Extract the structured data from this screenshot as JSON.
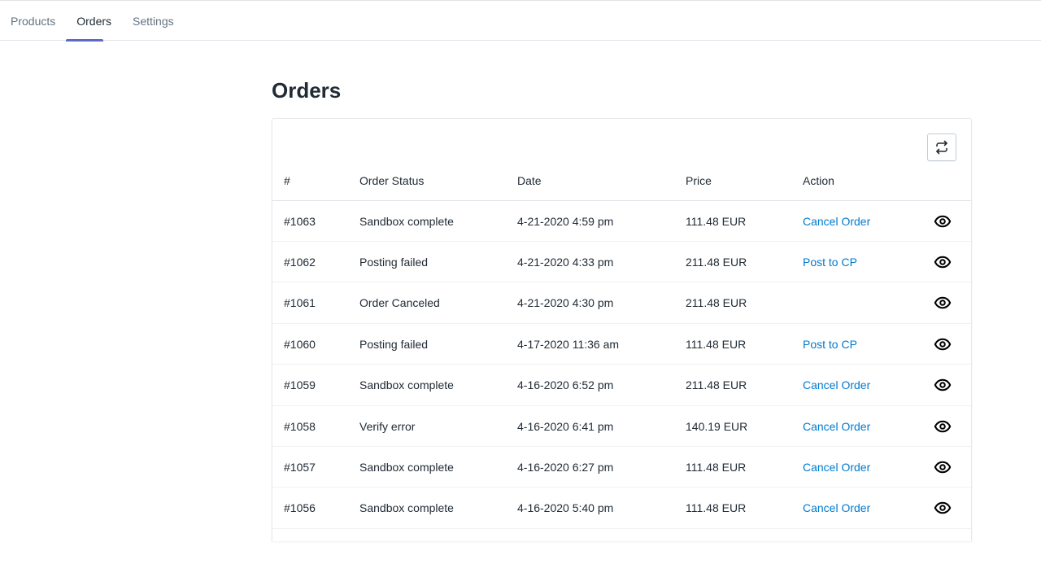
{
  "nav": {
    "tabs": [
      {
        "label": "Products",
        "active": false
      },
      {
        "label": "Orders",
        "active": true
      },
      {
        "label": "Settings",
        "active": false
      }
    ]
  },
  "page": {
    "title": "Orders"
  },
  "table": {
    "refresh_icon": "refresh-arrows-icon",
    "headers": [
      "#",
      "Order Status",
      "Date",
      "Price",
      "Action"
    ],
    "rows": [
      {
        "id": "#1063",
        "status": "Sandbox complete",
        "date": "4-21-2020 4:59 pm",
        "price": "111.48 EUR",
        "action": "Cancel Order"
      },
      {
        "id": "#1062",
        "status": "Posting failed",
        "date": "4-21-2020 4:33 pm",
        "price": "211.48 EUR",
        "action": "Post to CP"
      },
      {
        "id": "#1061",
        "status": "Order Canceled",
        "date": "4-21-2020 4:30 pm",
        "price": "211.48 EUR",
        "action": ""
      },
      {
        "id": "#1060",
        "status": "Posting failed",
        "date": "4-17-2020 11:36 am",
        "price": "111.48 EUR",
        "action": "Post to CP"
      },
      {
        "id": "#1059",
        "status": "Sandbox complete",
        "date": "4-16-2020 6:52 pm",
        "price": "211.48 EUR",
        "action": "Cancel Order"
      },
      {
        "id": "#1058",
        "status": "Verify error",
        "date": "4-16-2020 6:41 pm",
        "price": "140.19 EUR",
        "action": "Cancel Order"
      },
      {
        "id": "#1057",
        "status": "Sandbox complete",
        "date": "4-16-2020 6:27 pm",
        "price": "111.48 EUR",
        "action": "Cancel Order"
      },
      {
        "id": "#1056",
        "status": "Sandbox complete",
        "date": "4-16-2020 5:40 pm",
        "price": "111.48 EUR",
        "action": "Cancel Order"
      }
    ]
  },
  "colors": {
    "accent": "#5c6ac4",
    "link": "#007ace"
  }
}
